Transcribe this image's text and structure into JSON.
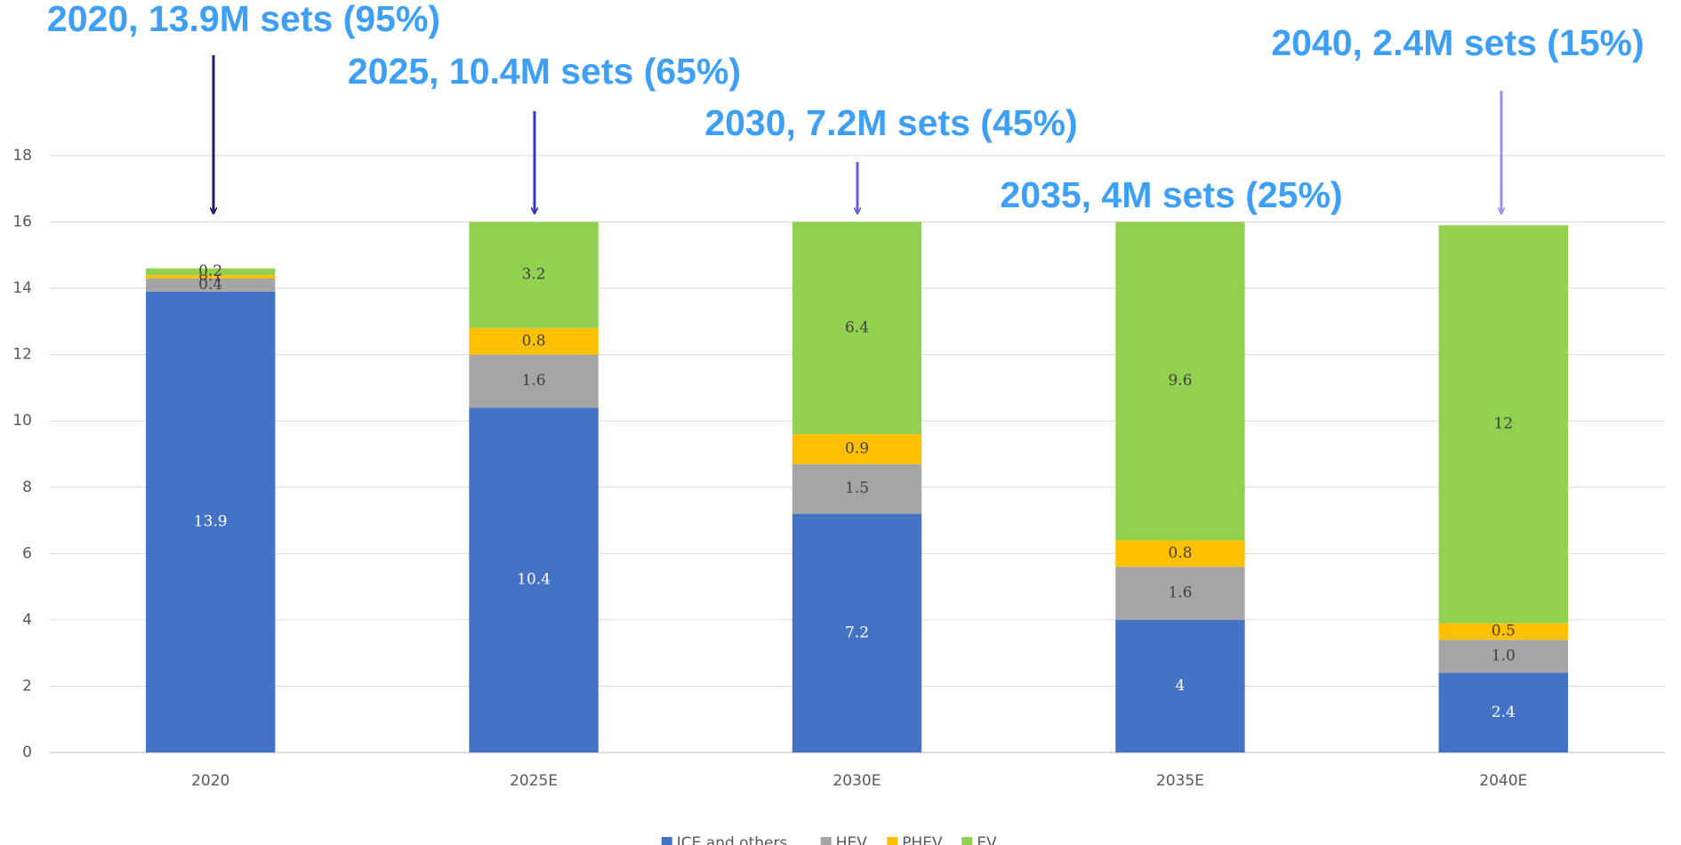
{
  "chart_data": {
    "type": "stacked_bar",
    "categories": [
      "2020",
      "2025E",
      "2030E",
      "2035E",
      "2040E"
    ],
    "series": [
      {
        "name": "ICE and others",
        "color": "#4472c4",
        "values": [
          13.9,
          10.4,
          7.2,
          4,
          2.4
        ]
      },
      {
        "name": "HEV",
        "color": "#a5a5a5",
        "values": [
          0.4,
          1.6,
          1.5,
          1.6,
          1.0
        ],
        "value_labels": [
          "0.4",
          "1.6",
          "1.5",
          "1.6",
          "1.0"
        ]
      },
      {
        "name": "PHEV",
        "color": "#ffc000",
        "values": [
          0.1,
          0.8,
          0.9,
          0.8,
          0.5
        ]
      },
      {
        "name": "EV",
        "color": "#92d050",
        "values": [
          0.2,
          3.2,
          6.4,
          9.6,
          12
        ]
      }
    ],
    "ylim": [
      0,
      18
    ],
    "yticks": [
      0,
      2,
      4,
      6,
      8,
      10,
      12,
      14,
      16,
      18
    ],
    "grid": true,
    "legend": "bottom",
    "annotations": [
      {
        "text": "2020, 13.9M sets (95%)",
        "color": "#3d9ff5",
        "arrow_color": "#1f1a6b"
      },
      {
        "text": "2025, 10.4M sets (65%)",
        "color": "#3d9ff5",
        "arrow_color": "#3a35c0"
      },
      {
        "text": "2030, 7.2M sets (45%)",
        "color": "#3d9ff5",
        "arrow_color": "#6a5fd8"
      },
      {
        "text": "2035, 4M sets (25%)",
        "color": "#3d9ff5"
      },
      {
        "text": "2040, 2.4M sets (15%)",
        "color": "#3d9ff5",
        "arrow_color": "#9a90e0"
      }
    ]
  }
}
